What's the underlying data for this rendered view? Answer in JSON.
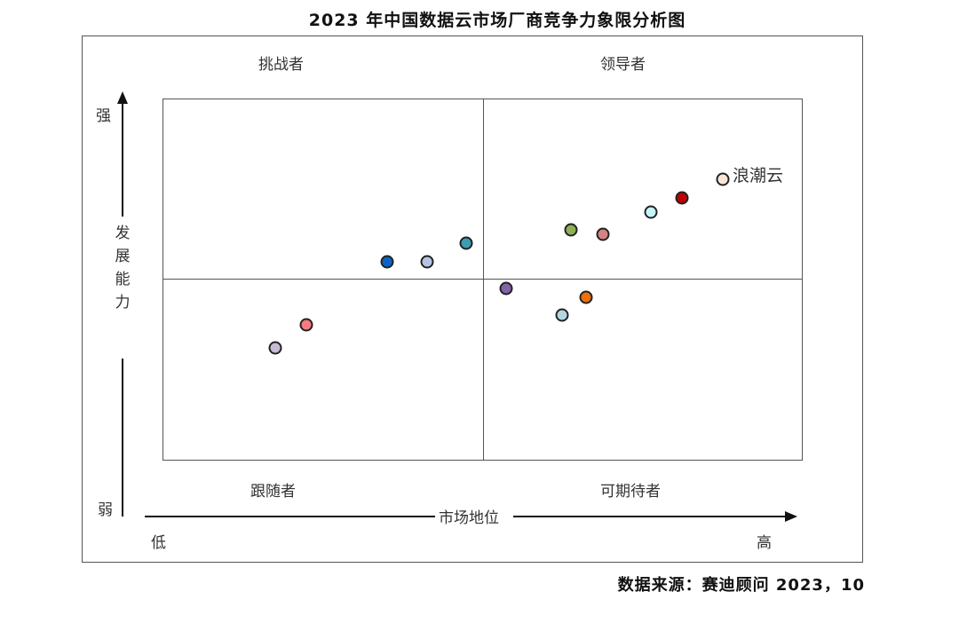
{
  "chart_data": {
    "type": "scatter",
    "title": "2023年中国数据云市场厂商竞争力象限分析图",
    "xlabel": "市场地位",
    "ylabel": "发展能力",
    "x_axis_ends": {
      "low": "低",
      "high": "高"
    },
    "y_axis_ends": {
      "low": "弱",
      "high": "强"
    },
    "xlim": [
      0,
      10
    ],
    "ylim": [
      0,
      10
    ],
    "grid": false,
    "quadrant_split": {
      "x": 5,
      "y": 5
    },
    "quadrants": {
      "top_left": "挑战者",
      "top_right": "领导者",
      "bottom_left": "跟随者",
      "bottom_right": "可期待者"
    },
    "points": [
      {
        "x": 8.75,
        "y": 7.77,
        "color": "#fde5d4",
        "label": "浪潮云"
      },
      {
        "x": 8.11,
        "y": 7.26,
        "color": "#c00000",
        "label": ""
      },
      {
        "x": 7.63,
        "y": 6.86,
        "color": "#c5f5fb",
        "label": ""
      },
      {
        "x": 6.88,
        "y": 6.25,
        "color": "#d38383",
        "label": ""
      },
      {
        "x": 6.38,
        "y": 6.37,
        "color": "#8db254",
        "label": ""
      },
      {
        "x": 4.74,
        "y": 6.0,
        "color": "#3c9db3",
        "label": ""
      },
      {
        "x": 4.13,
        "y": 5.49,
        "color": "#b4c5e4",
        "label": ""
      },
      {
        "x": 3.51,
        "y": 5.49,
        "color": "#0a64c8",
        "label": ""
      },
      {
        "x": 5.37,
        "y": 4.75,
        "color": "#8064a8",
        "label": ""
      },
      {
        "x": 6.62,
        "y": 4.51,
        "color": "#ee700a",
        "label": ""
      },
      {
        "x": 6.24,
        "y": 4.02,
        "color": "#b5d6e0",
        "label": ""
      },
      {
        "x": 2.25,
        "y": 3.75,
        "color": "#f77b80",
        "label": ""
      },
      {
        "x": 1.76,
        "y": 3.11,
        "color": "#c5bbd6",
        "label": ""
      }
    ],
    "source": "数据来源：赛迪顾问  2023，10"
  },
  "labels": {
    "title": "2023 年中国数据云市场厂商竞争力象限分析图",
    "q_tl": "挑战者",
    "q_tr": "领导者",
    "q_bl": "跟随者",
    "q_br": "可期待者",
    "y_high": "强",
    "y_low": "弱",
    "y_title_1": "发",
    "y_title_2": "展",
    "y_title_3": "能",
    "y_title_4": "力",
    "x_title": "市场地位",
    "x_low": "低",
    "x_high": "高",
    "highlight_vendor": "浪潮云",
    "source": "数据来源：赛迪顾问  2023，10"
  }
}
